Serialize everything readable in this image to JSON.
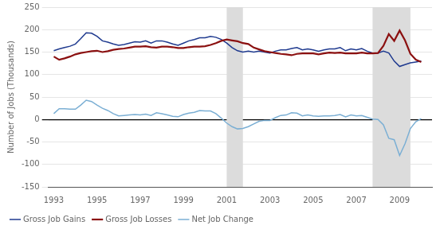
{
  "chart_data": {
    "type": "line",
    "ylabel": "Number of Jobs (Thousands)",
    "x": [
      1993.0,
      1993.25,
      1993.5,
      1993.75,
      1994.0,
      1994.25,
      1994.5,
      1994.75,
      1995.0,
      1995.25,
      1995.5,
      1995.75,
      1996.0,
      1996.25,
      1996.5,
      1996.75,
      1997.0,
      1997.25,
      1997.5,
      1997.75,
      1998.0,
      1998.25,
      1998.5,
      1998.75,
      1999.0,
      1999.25,
      1999.5,
      1999.75,
      2000.0,
      2000.25,
      2000.5,
      2000.75,
      2001.0,
      2001.25,
      2001.5,
      2001.75,
      2002.0,
      2002.25,
      2002.5,
      2002.75,
      2003.0,
      2003.25,
      2003.5,
      2003.75,
      2004.0,
      2004.25,
      2004.5,
      2004.75,
      2005.0,
      2005.25,
      2005.5,
      2005.75,
      2006.0,
      2006.25,
      2006.5,
      2006.75,
      2007.0,
      2007.25,
      2007.5,
      2007.75,
      2008.0,
      2008.25,
      2008.5,
      2008.75,
      2009.0,
      2009.25,
      2009.5,
      2009.75,
      2010.0
    ],
    "series": [
      {
        "name": "Gross Job Gains",
        "color": "#1F3A8F",
        "values": [
          153,
          157,
          160,
          163,
          168,
          180,
          193,
          192,
          185,
          175,
          172,
          168,
          165,
          167,
          170,
          173,
          172,
          175,
          170,
          175,
          175,
          172,
          168,
          165,
          170,
          175,
          178,
          182,
          182,
          185,
          183,
          178,
          170,
          160,
          153,
          150,
          152,
          150,
          152,
          150,
          148,
          152,
          155,
          155,
          158,
          160,
          155,
          157,
          155,
          152,
          155,
          157,
          157,
          160,
          153,
          157,
          155,
          158,
          152,
          148,
          148,
          152,
          148,
          130,
          118,
          122,
          126,
          128,
          130
        ]
      },
      {
        "name": "Gross Job Losses",
        "color": "#8B1010",
        "values": [
          140,
          133,
          136,
          140,
          145,
          148,
          150,
          152,
          153,
          150,
          152,
          155,
          157,
          158,
          160,
          162,
          162,
          163,
          161,
          160,
          162,
          162,
          161,
          159,
          159,
          161,
          162,
          162,
          163,
          166,
          170,
          175,
          178,
          176,
          174,
          170,
          168,
          160,
          156,
          152,
          150,
          148,
          146,
          145,
          143,
          146,
          147,
          147,
          147,
          145,
          147,
          149,
          148,
          149,
          147,
          147,
          147,
          149,
          147,
          147,
          148,
          164,
          190,
          175,
          198,
          176,
          146,
          133,
          128
        ]
      },
      {
        "name": "Net Job Change",
        "color": "#7BAFD4",
        "values": [
          13,
          24,
          24,
          23,
          23,
          32,
          43,
          40,
          32,
          25,
          20,
          13,
          8,
          9,
          10,
          11,
          10,
          12,
          9,
          15,
          13,
          10,
          7,
          6,
          11,
          14,
          16,
          20,
          19,
          19,
          13,
          3,
          -8,
          -16,
          -21,
          -20,
          -16,
          -10,
          -4,
          -2,
          -2,
          4,
          9,
          10,
          15,
          14,
          8,
          10,
          8,
          7,
          8,
          8,
          9,
          11,
          6,
          10,
          8,
          9,
          5,
          1,
          0,
          -12,
          -42,
          -45,
          -80,
          -54,
          -20,
          -5,
          2
        ]
      }
    ],
    "xlim": [
      1992.75,
      2010.5
    ],
    "xticks": [
      1993,
      1995,
      1997,
      1999,
      2001,
      2003,
      2005,
      2007,
      2009
    ],
    "ylim": [
      -150,
      250
    ],
    "yticks": [
      -150,
      -100,
      -50,
      0,
      50,
      100,
      150,
      200,
      250
    ],
    "grid": true,
    "legend": "lower left",
    "shades": {
      "ranges": [
        [
          2001.0,
          2001.75
        ],
        [
          2007.75,
          2009.5
        ]
      ],
      "color": "#DCDCDC"
    }
  }
}
